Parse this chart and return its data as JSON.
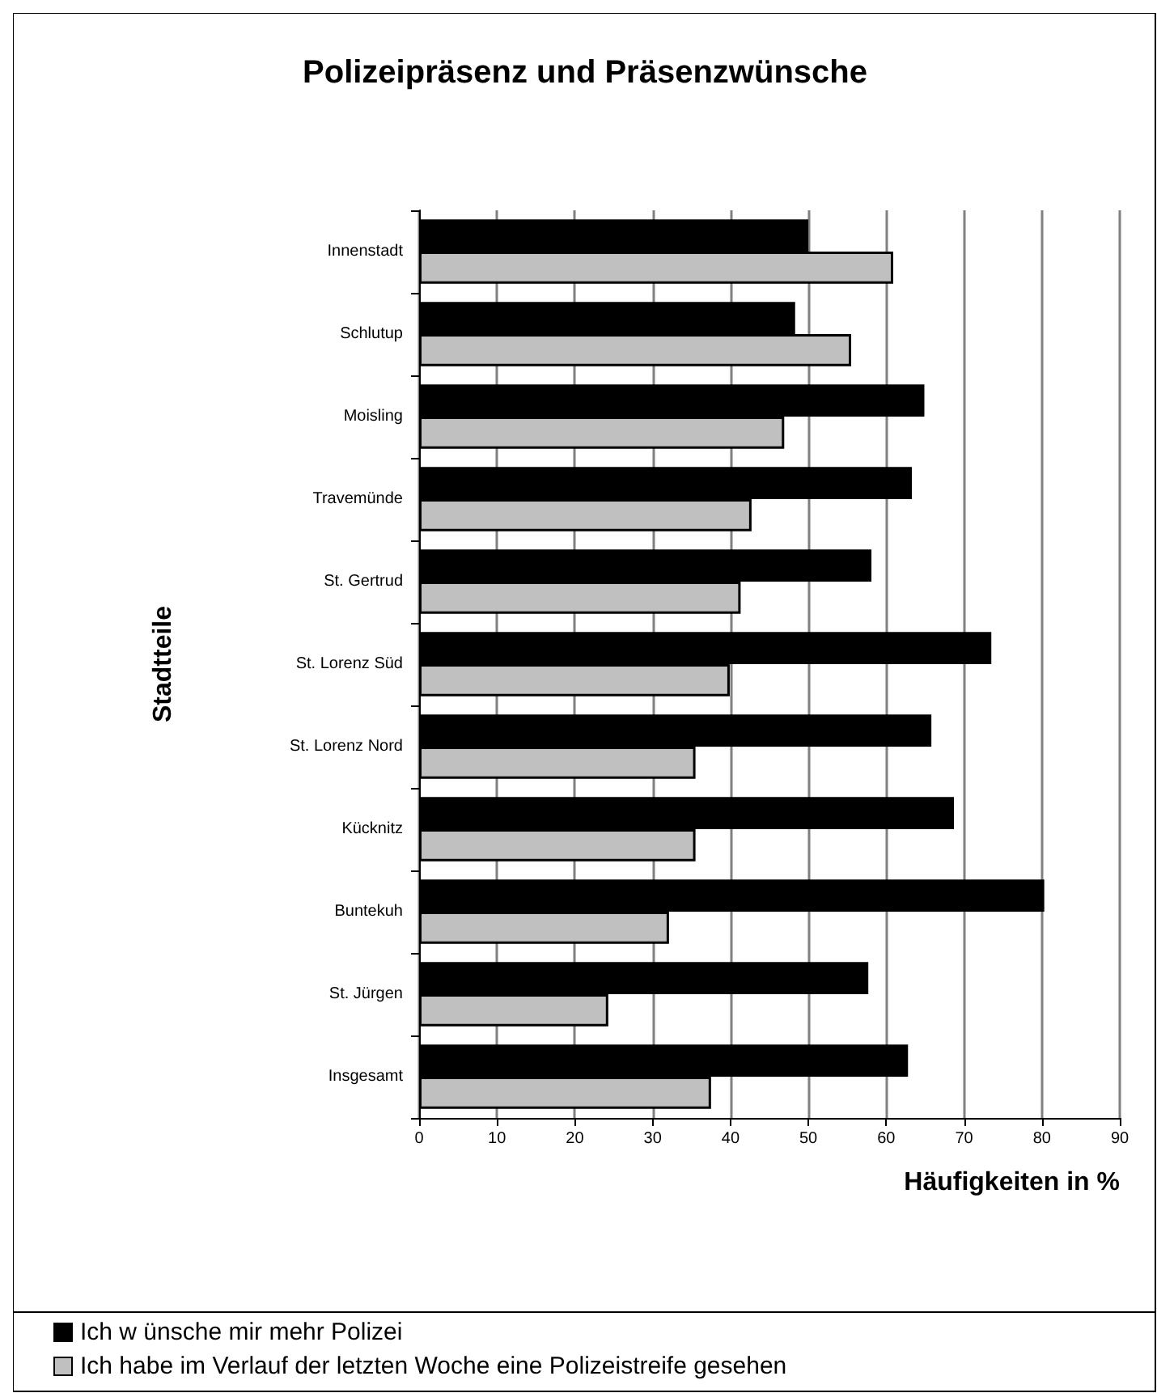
{
  "chart_data": {
    "type": "bar",
    "orientation": "horizontal",
    "title": "Polizeipräsenz und Präsenzwünsche",
    "xlabel": "Häufigkeiten in %",
    "ylabel": "Stadtteile",
    "categories": [
      "Innenstadt",
      "Schlutup",
      "Moisling",
      "Travemünde",
      "St. Gertrud",
      "St. Lorenz Süd",
      "St. Lorenz Nord",
      "Kücknitz",
      "Buntekuh",
      "St. Jürgen",
      "Insgesamt"
    ],
    "series": [
      {
        "name": "Ich w ünsche mir mehr Polizei",
        "color": "#000000",
        "values": [
          50,
          48.3,
          64.9,
          63.3,
          58.1,
          73.5,
          65.8,
          68.7,
          80.3,
          57.7,
          62.8
        ]
      },
      {
        "name": "Ich habe im Verlauf der letzten Woche eine Polizeistreife gesehen",
        "color": "#c0c0c0",
        "values": [
          60.9,
          55.5,
          46.9,
          42.7,
          41.3,
          39.9,
          35.5,
          35.5,
          32.1,
          24.3,
          37.5
        ]
      }
    ],
    "xlim": [
      0,
      90
    ],
    "xticks": [
      0,
      10,
      20,
      30,
      40,
      50,
      60,
      70,
      80,
      90
    ],
    "grid": "x",
    "legend": "bottom left"
  }
}
